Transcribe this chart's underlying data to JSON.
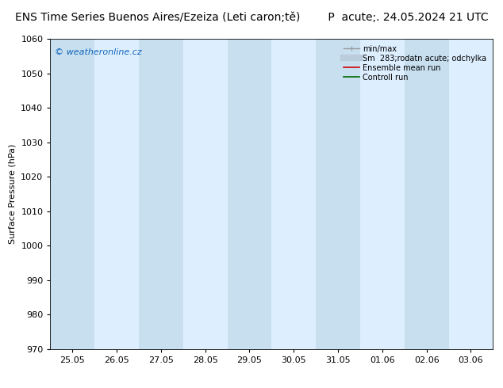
{
  "title": "ENS Time Series Buenos Aires/Ezeiza (Leti caron;tě)",
  "date_label": "P  acute;. 24.05.2024 21 UTC",
  "ylabel": "Surface Pressure (hPa)",
  "ylim": [
    970,
    1060
  ],
  "yticks": [
    970,
    980,
    990,
    1000,
    1010,
    1020,
    1030,
    1040,
    1050,
    1060
  ],
  "xtick_labels": [
    "25.05",
    "26.05",
    "27.05",
    "28.05",
    "29.05",
    "30.05",
    "31.05",
    "01.06",
    "02.06",
    "03.06"
  ],
  "n_ticks": 10,
  "bg_color": "#ffffff",
  "band_color_dark": "#c8dff0",
  "band_color_light": "#ddeeff",
  "band_indices": [
    0,
    2,
    6,
    8
  ],
  "legend_items": [
    {
      "label": "min/max",
      "color": "#999999",
      "lw": 1.0
    },
    {
      "label": "Sm  283;rodatn acute; odchylka",
      "color": "#bbccdd",
      "lw": 6
    },
    {
      "label": "Ensemble mean run",
      "color": "#cc0000",
      "lw": 1.2
    },
    {
      "label": "Controll run",
      "color": "#006600",
      "lw": 1.2
    }
  ],
  "watermark": "© weatheronline.cz",
  "title_fontsize": 10,
  "axis_fontsize": 8,
  "tick_fontsize": 8,
  "fig_width": 6.34,
  "fig_height": 4.9,
  "dpi": 100
}
